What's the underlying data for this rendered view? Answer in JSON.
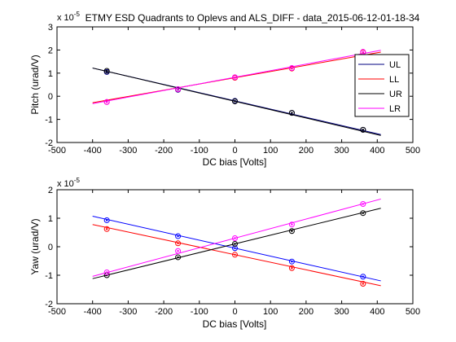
{
  "chart_data": [
    {
      "type": "line",
      "title": "ETMY ESD Quadrants to Oplevs and ALS_DIFF - data_2015-06-12-01-18-34",
      "xlabel": "DC bias [Volts]",
      "ylabel": "Pitch (urad/V)",
      "exponent_label": "x 10",
      "exponent_power": "-5",
      "xlim": [
        -500,
        500
      ],
      "ylim": [
        -2,
        3
      ],
      "xticks": [
        -500,
        -400,
        -300,
        -200,
        -100,
        0,
        100,
        200,
        300,
        400,
        500
      ],
      "yticks": [
        -2,
        -1,
        0,
        1,
        2,
        3
      ],
      "grid": false,
      "legend_position": "right",
      "fit_range": [
        -400,
        410
      ],
      "data_x": [
        -360,
        -160,
        0,
        160,
        360
      ],
      "series": [
        {
          "name": "UL",
          "color": "#000080",
          "values": [
            1.05,
            0.28,
            -0.2,
            -0.72,
            -1.45
          ],
          "fit": {
            "slope": -0.00355,
            "intercept": -0.2
          }
        },
        {
          "name": "LL",
          "color": "#ff0000",
          "values": [
            -0.25,
            0.3,
            0.8,
            1.2,
            1.9
          ],
          "fit": {
            "slope": 0.0027,
            "intercept": 0.8
          }
        },
        {
          "name": "UR",
          "color": "#000000",
          "values": [
            1.1,
            0.3,
            -0.22,
            -0.72,
            -1.45
          ],
          "fit": {
            "slope": -0.0036,
            "intercept": -0.22
          }
        },
        {
          "name": "LR",
          "color": "#ff00ff",
          "values": [
            -0.25,
            0.3,
            0.82,
            1.22,
            1.92
          ],
          "fit": {
            "slope": 0.00285,
            "intercept": 0.82
          }
        }
      ]
    },
    {
      "type": "line",
      "title": "",
      "xlabel": "DC bias [Volts]",
      "ylabel": "Yaw (urad/V)",
      "exponent_label": "x 10",
      "exponent_power": "-5",
      "xlim": [
        -500,
        500
      ],
      "ylim": [
        -2,
        2
      ],
      "xticks": [
        -500,
        -400,
        -300,
        -200,
        -100,
        0,
        100,
        200,
        300,
        400,
        500
      ],
      "yticks": [
        -2,
        -1,
        0,
        1,
        2
      ],
      "grid": false,
      "fit_range": [
        -400,
        410
      ],
      "data_x": [
        -360,
        -160,
        0,
        160,
        360
      ],
      "series": [
        {
          "name": "UL",
          "color": "#0000ff",
          "values": [
            0.93,
            0.37,
            -0.05,
            -0.52,
            -1.05
          ],
          "fit": {
            "slope": -0.0028,
            "intercept": -0.05
          }
        },
        {
          "name": "LL",
          "color": "#ff0000",
          "values": [
            0.62,
            0.12,
            -0.28,
            -0.75,
            -1.3
          ],
          "fit": {
            "slope": -0.00265,
            "intercept": -0.28
          }
        },
        {
          "name": "UR",
          "color": "#000000",
          "values": [
            -1.0,
            -0.37,
            0.1,
            0.55,
            1.18
          ],
          "fit": {
            "slope": 0.00305,
            "intercept": 0.1
          }
        },
        {
          "name": "LR",
          "color": "#ff00ff",
          "values": [
            -0.9,
            -0.15,
            0.3,
            0.78,
            1.5
          ],
          "fit": {
            "slope": 0.00335,
            "intercept": 0.3
          }
        }
      ]
    }
  ]
}
